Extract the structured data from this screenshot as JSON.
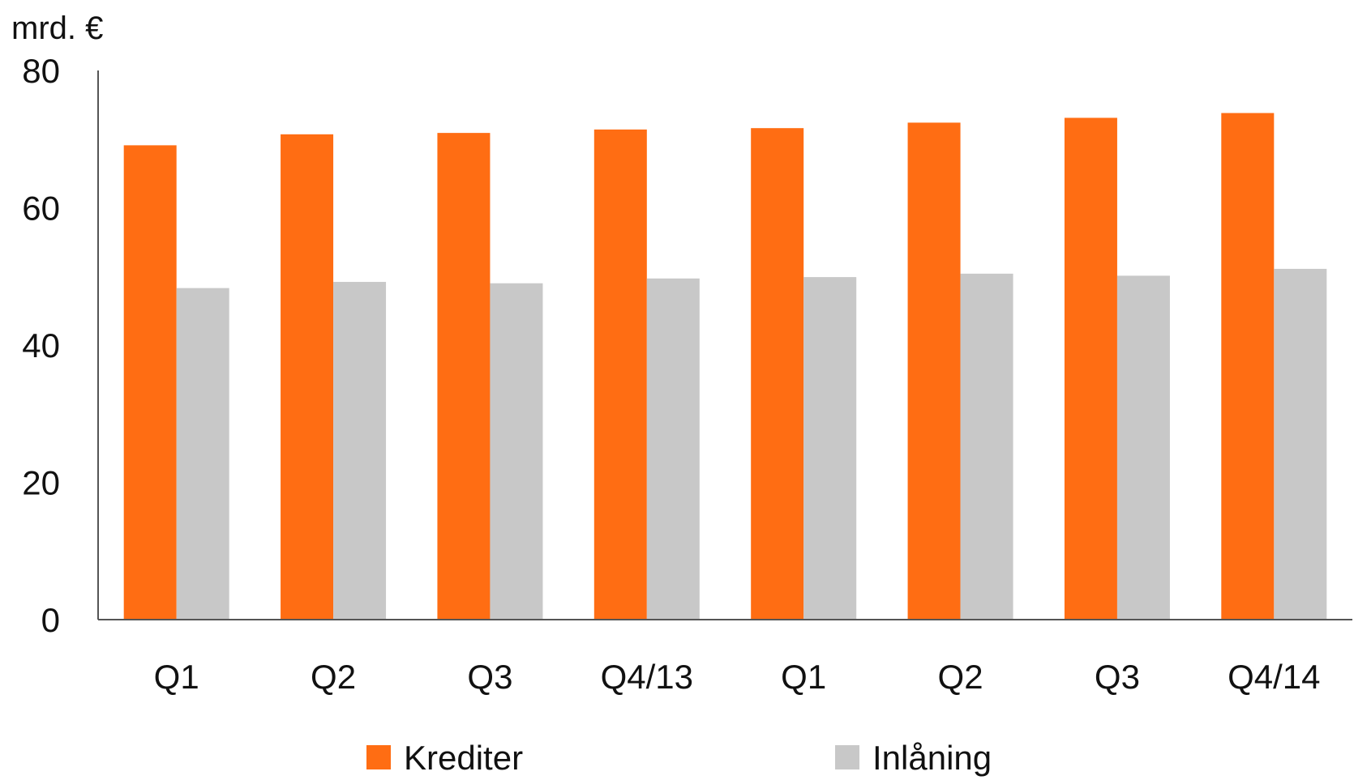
{
  "chart_data": {
    "type": "bar",
    "title": "",
    "ylabel": "mrd. €",
    "xlabel": "",
    "categories": [
      "Q1",
      "Q2",
      "Q3",
      "Q4/13",
      "Q1",
      "Q2",
      "Q3",
      "Q4/14"
    ],
    "series": [
      {
        "name": "Krediter",
        "color": "#FF6D13",
        "values": [
          69.1,
          70.7,
          70.9,
          71.4,
          71.6,
          72.4,
          73.1,
          73.8
        ]
      },
      {
        "name": "Inlåning",
        "color": "#C8C8C8",
        "values": [
          48.3,
          49.2,
          49.0,
          49.7,
          49.9,
          50.4,
          50.1,
          51.1
        ]
      }
    ],
    "ylim": [
      0,
      80
    ],
    "yticks": [
      "0",
      "20",
      "40",
      "60",
      "80"
    ],
    "grid": false,
    "legend_position": "bottom"
  }
}
